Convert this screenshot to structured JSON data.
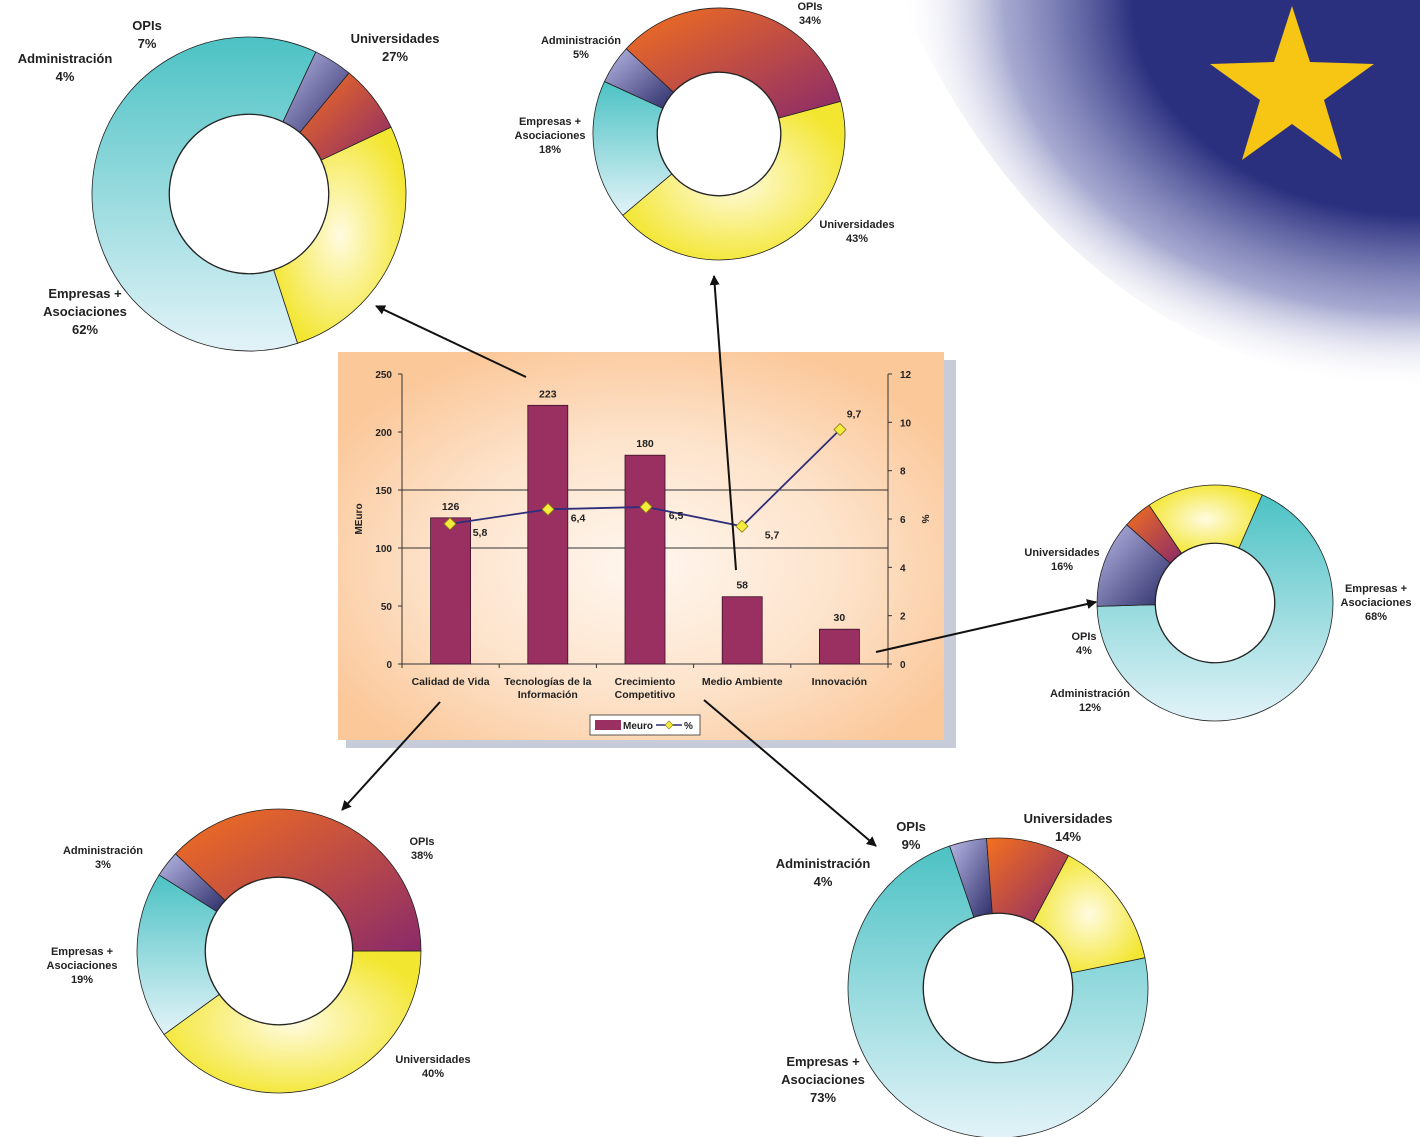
{
  "colors": {
    "universidades": "#f6ec54",
    "empresas": "#5cc6c8",
    "opis": "#f26a2a",
    "administracion": "#6a6ab0",
    "bar": "#9a3062",
    "line": "#2e2e7a",
    "marker": "#f4ec3c",
    "panel": "#fbc89a",
    "flag": "#2a2f7e",
    "star": "#f7c514"
  },
  "decor": {
    "star_icon": "star-icon",
    "flag_icon": "eu-flag-corner"
  },
  "chart_data": [
    {
      "id": "main",
      "type": "bar",
      "categories": [
        "Calidad de Vida",
        "Tecnologías de la Información",
        "Crecimiento Competitivo",
        "Medio Ambiente",
        "Innovación"
      ],
      "category_lines": [
        [
          "Calidad de Vida"
        ],
        [
          "Tecnologías de la",
          "Información"
        ],
        [
          "Crecimiento",
          "Competitivo"
        ],
        [
          "Medio Ambiente"
        ],
        [
          "Innovación"
        ]
      ],
      "series": [
        {
          "name": "Meuro",
          "type": "bar",
          "axis": "left",
          "values": [
            126,
            223,
            180,
            58,
            30
          ],
          "labels": [
            "126",
            "223",
            "180",
            "58",
            "30"
          ]
        },
        {
          "name": "%",
          "type": "line",
          "axis": "right",
          "values": [
            5.8,
            6.4,
            6.5,
            5.7,
            9.7
          ],
          "labels": [
            "5,8",
            "6,4",
            "6,5",
            "5,7",
            "9,7"
          ]
        }
      ],
      "ylabel": "MEuro",
      "y2label": "%",
      "ylim": [
        0,
        250
      ],
      "y2lim": [
        0,
        12
      ],
      "yticks": [
        "0",
        "50",
        "100",
        "150",
        "200",
        "250"
      ],
      "y2ticks": [
        "0",
        "2",
        "4",
        "6",
        "8",
        "10",
        "12"
      ],
      "grid": true,
      "legend": "bottom"
    },
    {
      "id": "pie-calidad-de-vida",
      "type": "pie",
      "slices": [
        {
          "label": "Universidades",
          "value": 40,
          "text": "40%"
        },
        {
          "label": "Empresas + Asociaciones",
          "value": 19,
          "text": "19%"
        },
        {
          "label": "Administración",
          "value": 3,
          "text": "3%"
        },
        {
          "label": "OPIs",
          "value": 38,
          "text": "38%"
        }
      ]
    },
    {
      "id": "pie-tecnologias",
      "type": "pie",
      "slices": [
        {
          "label": "Universidades",
          "value": 27,
          "text": "27%"
        },
        {
          "label": "Empresas + Asociaciones",
          "value": 62,
          "text": "62%"
        },
        {
          "label": "Administración",
          "value": 4,
          "text": "4%"
        },
        {
          "label": "OPIs",
          "value": 7,
          "text": "7%"
        }
      ]
    },
    {
      "id": "pie-crecimiento",
      "type": "pie",
      "slices": [
        {
          "label": "Universidades",
          "value": 14,
          "text": "14%"
        },
        {
          "label": "Empresas + Asociaciones",
          "value": 73,
          "text": "73%"
        },
        {
          "label": "Administración",
          "value": 4,
          "text": "4%"
        },
        {
          "label": "OPIs",
          "value": 9,
          "text": "9%"
        }
      ]
    },
    {
      "id": "pie-medio-ambiente",
      "type": "pie",
      "slices": [
        {
          "label": "Universidades",
          "value": 43,
          "text": "43%"
        },
        {
          "label": "Empresas + Asociaciones",
          "value": 18,
          "text": "18%"
        },
        {
          "label": "Administración",
          "value": 5,
          "text": "5%"
        },
        {
          "label": "OPIs",
          "value": 34,
          "text": "34%"
        }
      ]
    },
    {
      "id": "pie-innovacion",
      "type": "pie",
      "slices": [
        {
          "label": "Universidades",
          "value": 16,
          "text": "16%"
        },
        {
          "label": "Empresas + Asociaciones",
          "value": 68,
          "text": "68%"
        },
        {
          "label": "Administración",
          "value": 12,
          "text": "12%"
        },
        {
          "label": "OPIs",
          "value": 4,
          "text": "4%"
        }
      ]
    }
  ]
}
